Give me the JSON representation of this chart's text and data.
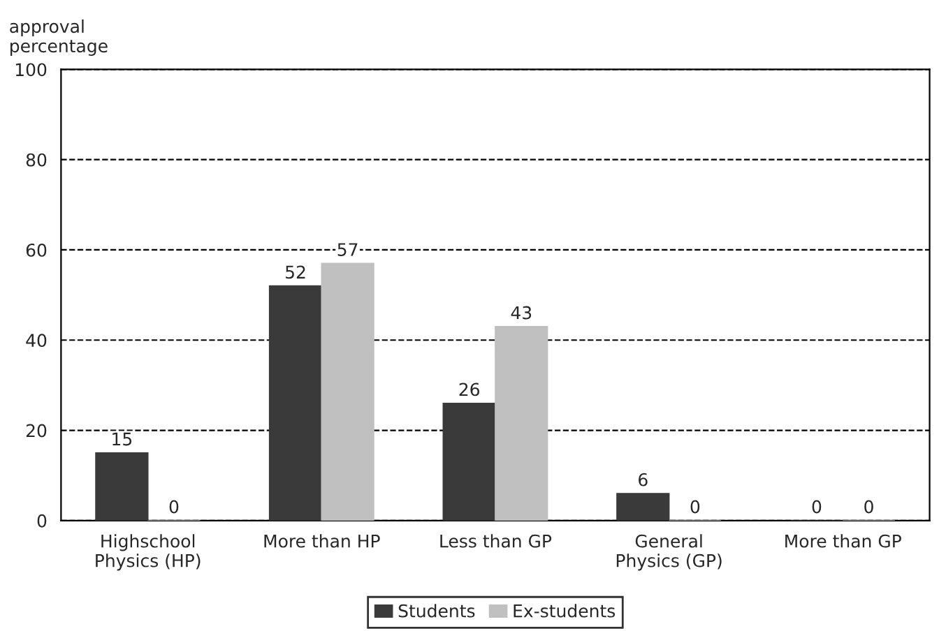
{
  "chart_data": {
    "type": "bar",
    "ylabel": "approval\npercentage",
    "categories": [
      "Highschool\nPhysics (HP)",
      "More than HP",
      "Less than GP",
      "General\nPhysics (GP)",
      "More than GP"
    ],
    "series": [
      {
        "name": "Students",
        "color": "#3a3a3a",
        "values": [
          15,
          52,
          26,
          6,
          0
        ]
      },
      {
        "name": "Ex-students",
        "color": "#c0c0c0",
        "values": [
          0,
          57,
          43,
          0,
          0
        ]
      }
    ],
    "ylim": [
      0,
      100
    ],
    "yticks": [
      0,
      20,
      40,
      60,
      80,
      100
    ],
    "grid": "y",
    "legend": "bottom",
    "data_labels": true
  }
}
